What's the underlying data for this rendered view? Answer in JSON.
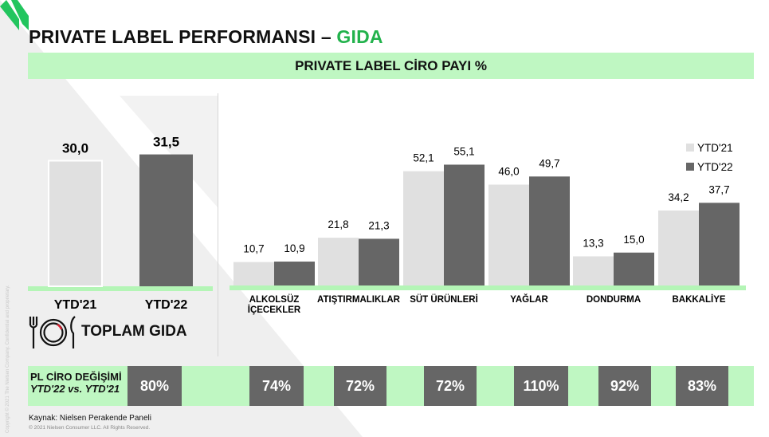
{
  "title": {
    "main": "PRIVATE LABEL PERFORMANSI –",
    "accent": "GIDA",
    "accent_color": "#22b24c"
  },
  "banner": {
    "text": "PRIVATE LABEL CİRO PAYI %",
    "color": "#bff7c2"
  },
  "colors": {
    "ytd21": "#e0e0e0",
    "ytd22": "#666666",
    "baseline": "#b4f5b6"
  },
  "total": {
    "label": "TOPLAM GIDA",
    "icon": "plate-cutlery-icon",
    "chart_data": {
      "type": "bar",
      "categories": [
        "YTD'21",
        "YTD'22"
      ],
      "values": [
        30.0,
        31.5
      ],
      "labels": [
        "30,0",
        "31,5"
      ],
      "ylim": [
        0,
        60
      ]
    }
  },
  "chart_data": {
    "type": "bar",
    "categories": [
      "ALKOLSÜZ İÇECEKLER",
      "ATIŞTIRMALIKLAR",
      "SÜT ÜRÜNLERİ",
      "YAĞLAR",
      "DONDURMA",
      "BAKKALİYE"
    ],
    "category_lines": [
      [
        "ALKOLSÜZ",
        "İÇECEKLER"
      ],
      [
        "ATIŞTIRMALIKLAR"
      ],
      [
        "SÜT ÜRÜNLERİ"
      ],
      [
        "YAĞLAR"
      ],
      [
        "DONDURMA"
      ],
      [
        "BAKKALİYE"
      ]
    ],
    "series": [
      {
        "name": "YTD'21",
        "values": [
          10.7,
          21.8,
          52.1,
          46.0,
          13.3,
          34.2
        ],
        "labels": [
          "10,7",
          "21,8",
          "52,1",
          "46,0",
          "13,3",
          "34,2"
        ]
      },
      {
        "name": "YTD'22",
        "values": [
          10.9,
          21.3,
          55.1,
          49.7,
          15.0,
          37.7
        ],
        "labels": [
          "10,9",
          "21,3",
          "55,1",
          "49,7",
          "15,0",
          "37,7"
        ]
      }
    ],
    "ylim": [
      0,
      60
    ],
    "legend": "top-right"
  },
  "change": {
    "label_line1": "PL CİRO DEĞİŞİMİ",
    "label_line2": "YTD'22 vs. YTD'21",
    "total": "80%",
    "categories": [
      "74%",
      "72%",
      "72%",
      "110%",
      "92%",
      "83%"
    ]
  },
  "source": "Kaynak: Nielsen Perakende Paneli",
  "copyright": "© 2021 Nielsen Consumer LLC. All Rights Reserved.",
  "side_copyright": "Copyright © 2021 The Nielsen Company. Confidential and proprietary."
}
